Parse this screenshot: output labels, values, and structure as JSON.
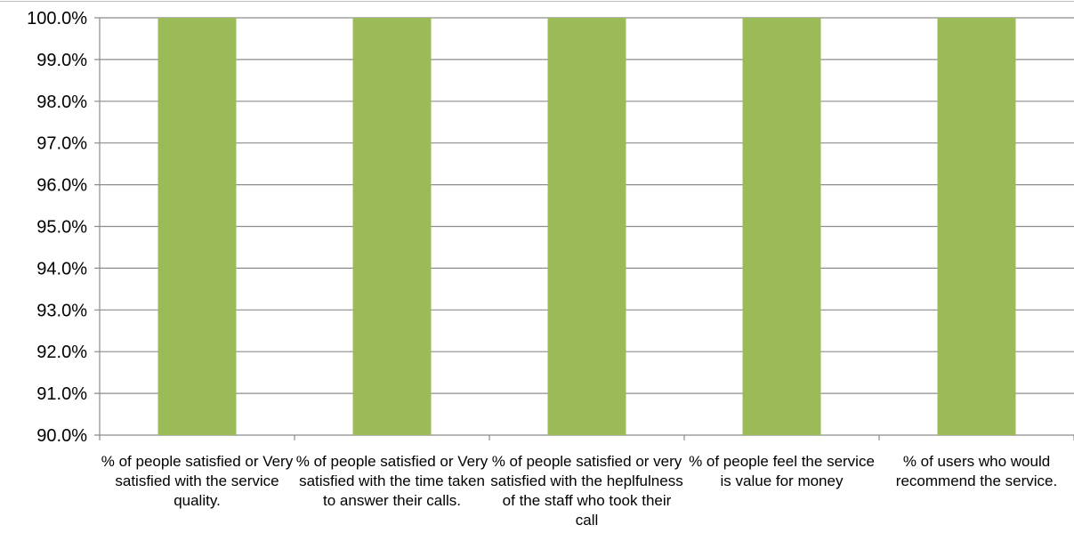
{
  "chart_data": {
    "type": "bar",
    "title": "",
    "xlabel": "",
    "ylabel": "",
    "ylim": [
      0.9,
      1.0
    ],
    "yticks": [
      "90.0%",
      "91.0%",
      "92.0%",
      "93.0%",
      "94.0%",
      "95.0%",
      "96.0%",
      "97.0%",
      "98.0%",
      "99.0%",
      "100.0%"
    ],
    "categories": [
      "% of people satisfied or Very satisfied with the service quality.",
      "% of people satisfied or Very satisfied with the time taken to answer their calls.",
      "% of people satisfied or very satisfied with the heplfulness of the staff who took their call",
      "% of people feel the service is value for money",
      "% of users who would recommend the service."
    ],
    "values": [
      1.0,
      1.0,
      1.0,
      1.0,
      1.0
    ],
    "grid": true,
    "legend": "none"
  },
  "colors": {
    "bar": "#9bbb59",
    "grid": "#8c8c8c",
    "axis": "#8c8c8c",
    "text": "#000000"
  }
}
